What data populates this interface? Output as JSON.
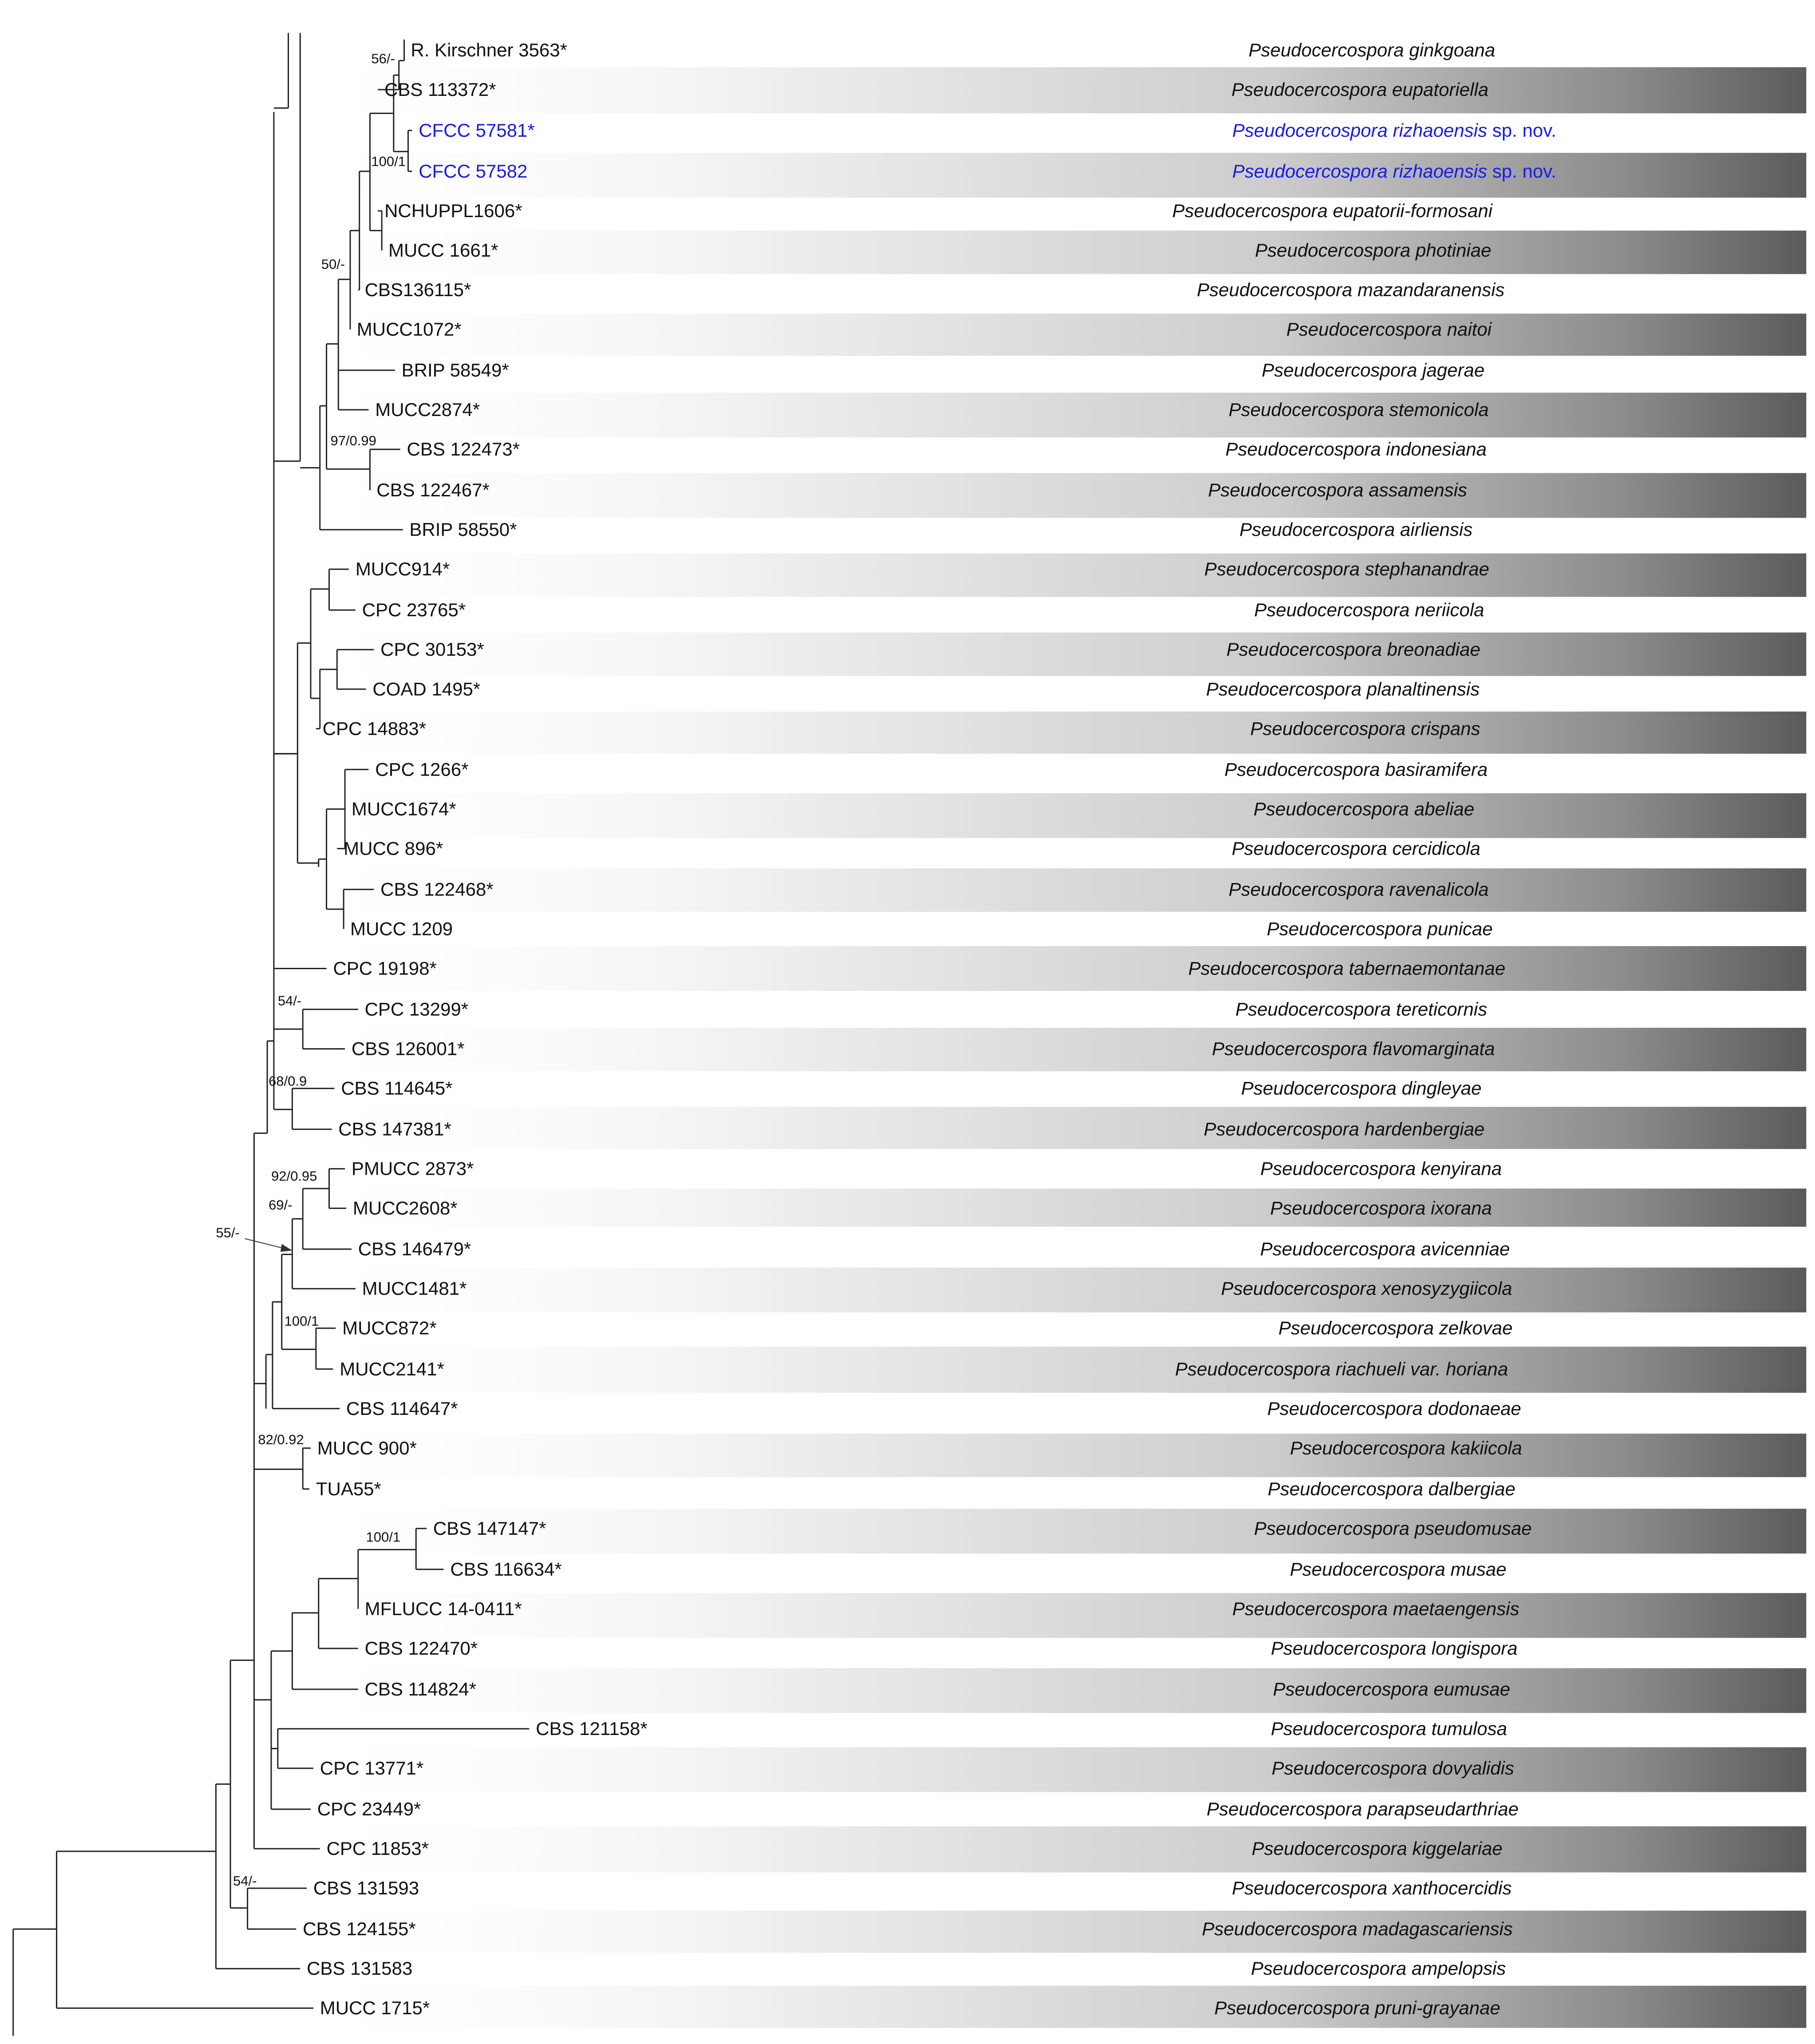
{
  "tree": {
    "taxa": [
      {
        "strain": "R. Kirschner 3563*",
        "species": "Pseudocercospora ginkgoana"
      },
      {
        "strain": "CBS 113372*",
        "species": "Pseudocercospora eupatoriella"
      },
      {
        "strain": "CFCC 57581*",
        "species": "Pseudocercospora rizhaoensis",
        "suffix": "sp. nov.",
        "new": true
      },
      {
        "strain": "CFCC 57582",
        "species": "Pseudocercospora rizhaoensis",
        "suffix": "sp. nov.",
        "new": true
      },
      {
        "strain": "NCHUPPL1606*",
        "species": "Pseudocercospora eupatorii-formosani"
      },
      {
        "strain": "MUCC 1661*",
        "species": "Pseudocercospora photiniae"
      },
      {
        "strain": "CBS136115*",
        "species": "Pseudocercospora mazandaranensis"
      },
      {
        "strain": "MUCC1072*",
        "species": "Pseudocercospora naitoi"
      },
      {
        "strain": "BRIP 58549*",
        "species": "Pseudocercospora jagerae"
      },
      {
        "strain": "MUCC2874*",
        "species": "Pseudocercospora stemonicola"
      },
      {
        "strain": "CBS 122473*",
        "species": "Pseudocercospora indonesiana"
      },
      {
        "strain": "CBS 122467*",
        "species": "Pseudocercospora assamensis"
      },
      {
        "strain": "BRIP 58550*",
        "species": "Pseudocercospora airliensis"
      },
      {
        "strain": "MUCC914*",
        "species": "Pseudocercospora stephanandrae"
      },
      {
        "strain": "CPC 23765*",
        "species": "Pseudocercospora neriicola"
      },
      {
        "strain": "CPC 30153*",
        "species": "Pseudocercospora breonadiae"
      },
      {
        "strain": "COAD 1495*",
        "species": "Pseudocercospora planaltinensis"
      },
      {
        "strain": "CPC 14883*",
        "species": "Pseudocercospora crispans"
      },
      {
        "strain": "CPC 1266*",
        "species": "Pseudocercospora basiramifera"
      },
      {
        "strain": "MUCC1674*",
        "species": "Pseudocercospora abeliae"
      },
      {
        "strain": "MUCC 896*",
        "species": "Pseudocercospora cercidicola"
      },
      {
        "strain": "CBS 122468*",
        "species": "Pseudocercospora ravenalicola"
      },
      {
        "strain": "MUCC 1209",
        "species": "Pseudocercospora punicae"
      },
      {
        "strain": "CPC 19198*",
        "species": "Pseudocercospora tabernaemontanae"
      },
      {
        "strain": "CPC 13299*",
        "species": "Pseudocercospora tereticornis"
      },
      {
        "strain": "CBS 126001*",
        "species": "Pseudocercospora flavomarginata"
      },
      {
        "strain": "CBS 114645*",
        "species": "Pseudocercospora dingleyae"
      },
      {
        "strain": "CBS 147381*",
        "species": "Pseudocercospora hardenbergiae"
      },
      {
        "strain": "PMUCC 2873*",
        "species": "Pseudocercospora kenyirana"
      },
      {
        "strain": "MUCC2608*",
        "species": "Pseudocercospora ixorana"
      },
      {
        "strain": "CBS 146479*",
        "species": "Pseudocercospora avicenniae"
      },
      {
        "strain": "MUCC1481*",
        "species": "Pseudocercospora xenosyzygiicola"
      },
      {
        "strain": "MUCC872*",
        "species": "Pseudocercospora zelkovae"
      },
      {
        "strain": "MUCC2141*",
        "species": "Pseudocercospora riachueli var. horiana"
      },
      {
        "strain": "CBS 114647*",
        "species": "Pseudocercospora dodonaeae"
      },
      {
        "strain": "MUCC 900*",
        "species": "Pseudocercospora kakiicola"
      },
      {
        "strain": "TUA55*",
        "species": "Pseudocercospora dalbergiae"
      },
      {
        "strain": "CBS 147147*",
        "species": "Pseudocercospora pseudomusae"
      },
      {
        "strain": "CBS 116634*",
        "species": "Pseudocercospora musae"
      },
      {
        "strain": "MFLUCC 14-0411*",
        "species": "Pseudocercospora maetaengensis"
      },
      {
        "strain": "CBS 122470*",
        "species": "Pseudocercospora longispora"
      },
      {
        "strain": "CBS 114824*",
        "species": "Pseudocercospora eumusae"
      },
      {
        "strain": "CBS 121158*",
        "species": "Pseudocercospora tumulosa"
      },
      {
        "strain": "CPC 13771*",
        "species": "Pseudocercospora dovyalidis"
      },
      {
        "strain": "CPC 23449*",
        "species": "Pseudocercospora parapseudarthriae"
      },
      {
        "strain": "CPC 11853*",
        "species": "Pseudocercospora kiggelariae"
      },
      {
        "strain": "CBS 131593",
        "species": "Pseudocercospora xanthocercidis"
      },
      {
        "strain": "CBS 124155*",
        "species": "Pseudocercospora madagascariensis"
      },
      {
        "strain": "CBS 131583",
        "species": "Pseudocercospora ampelopsis"
      },
      {
        "strain": "MUCC 1715*",
        "species": "Pseudocercospora pruni-grayanae"
      }
    ],
    "supports": [
      "56/-",
      "100/1",
      "50/-",
      "97/0.99",
      "54/-",
      "68/0.9",
      "92/0.95",
      "69/-",
      "55/-",
      "100/1",
      "82/0.92",
      "100/1",
      "54/-"
    ]
  }
}
